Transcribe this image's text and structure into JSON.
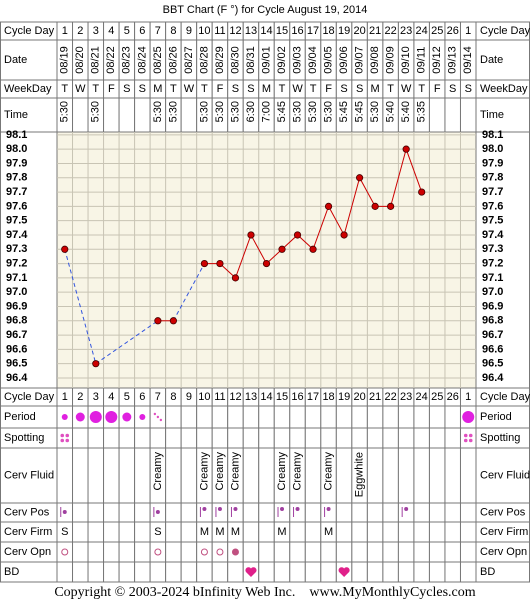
{
  "chart_data": {
    "type": "line",
    "title": "BBT Chart (F °) for Cycle August 19, 2014",
    "row_labels": {
      "cycle_day": "Cycle Day",
      "date": "Date",
      "weekday": "WeekDay",
      "time": "Time",
      "period": "Period",
      "spotting": "Spotting",
      "cerv_fluid": "Cerv Fluid",
      "cerv_pos": "Cerv Pos",
      "cerv_firm": "Cerv Firm",
      "cerv_opn": "Cerv Opn",
      "bd": "BD"
    },
    "cycle_days": [
      "1",
      "2",
      "3",
      "4",
      "5",
      "6",
      "7",
      "8",
      "9",
      "10",
      "11",
      "12",
      "13",
      "14",
      "15",
      "16",
      "17",
      "18",
      "19",
      "20",
      "21",
      "22",
      "23",
      "24",
      "25",
      "26",
      "1"
    ],
    "categories": [
      "08/19",
      "08/20",
      "08/21",
      "08/22",
      "08/23",
      "08/24",
      "08/25",
      "08/26",
      "08/27",
      "08/28",
      "08/29",
      "08/30",
      "08/31",
      "09/01",
      "09/02",
      "09/03",
      "09/04",
      "09/05",
      "09/06",
      "09/07",
      "09/08",
      "09/09",
      "09/10",
      "09/11",
      "09/12",
      "09/13",
      "09/14"
    ],
    "weekdays": [
      "T",
      "W",
      "T",
      "F",
      "S",
      "S",
      "M",
      "T",
      "W",
      "T",
      "F",
      "S",
      "S",
      "M",
      "T",
      "W",
      "T",
      "F",
      "S",
      "S",
      "M",
      "T",
      "W",
      "T",
      "F",
      "S",
      "S"
    ],
    "times": [
      "5:30",
      null,
      "5:30",
      null,
      null,
      null,
      "5:30",
      "5:30",
      null,
      "5:30",
      "5:30",
      "5:30",
      "6:30",
      "7:00",
      "5:45",
      "5:30",
      "5:30",
      "5:30",
      "5:45",
      "5:45",
      "5:30",
      "5:40",
      "5:40",
      "5:35",
      null,
      null,
      null
    ],
    "series": [
      {
        "color": "#cc0000",
        "values": [
          97.3,
          null,
          96.5,
          null,
          null,
          null,
          96.8,
          96.8,
          null,
          97.2,
          97.2,
          97.1,
          97.4,
          97.2,
          97.3,
          97.4,
          97.3,
          97.6,
          97.4,
          97.8,
          97.6,
          97.6,
          98.0,
          97.7,
          null,
          null,
          null
        ]
      }
    ],
    "gap_color": "#3355dd",
    "ylim": [
      96.33,
      98.12
    ],
    "yticks": [
      96.4,
      96.5,
      96.6,
      96.7,
      96.8,
      96.9,
      {
        "value": 97,
        "label": "97.0"
      },
      97.1,
      97.2,
      97.3,
      97.4,
      97.5,
      97.6,
      97.7,
      97.8,
      97.9,
      {
        "value": 98,
        "label": "98.0"
      },
      98.1
    ],
    "grid": true,
    "period": [
      "light",
      "medium",
      "heavy",
      "heavy",
      "medium",
      "light",
      "spotting",
      null,
      null,
      null,
      null,
      null,
      null,
      null,
      null,
      null,
      null,
      null,
      null,
      null,
      null,
      null,
      null,
      null,
      null,
      null,
      "heavy"
    ],
    "spotting": [
      true,
      false,
      false,
      false,
      false,
      false,
      false,
      false,
      false,
      false,
      false,
      false,
      false,
      false,
      false,
      false,
      false,
      false,
      false,
      false,
      false,
      false,
      false,
      false,
      false,
      false,
      true
    ],
    "cerv_fluid": [
      null,
      null,
      null,
      null,
      null,
      null,
      "Creamy",
      null,
      null,
      "Creamy",
      "Creamy",
      "Creamy",
      null,
      null,
      "Creamy",
      "Creamy",
      null,
      "Creamy",
      null,
      "Eggwhite",
      null,
      null,
      null,
      null,
      null,
      null,
      null
    ],
    "cerv_pos": [
      "low",
      null,
      null,
      null,
      null,
      null,
      "low",
      null,
      null,
      "high",
      "high",
      "high",
      null,
      null,
      "high",
      "high",
      null,
      "high",
      null,
      null,
      null,
      null,
      "high",
      null,
      null,
      null,
      null
    ],
    "cerv_firm": [
      "S",
      null,
      null,
      null,
      null,
      null,
      "S",
      null,
      null,
      "M",
      "M",
      "M",
      null,
      null,
      "M",
      null,
      null,
      "M",
      null,
      null,
      null,
      null,
      null,
      null,
      null,
      null,
      null
    ],
    "cerv_opn": [
      "open",
      null,
      null,
      null,
      null,
      null,
      "open",
      null,
      null,
      "open",
      "open",
      "closed",
      null,
      null,
      null,
      null,
      null,
      null,
      null,
      null,
      null,
      null,
      null,
      null,
      null,
      null,
      null
    ],
    "bd": [
      false,
      false,
      false,
      false,
      false,
      false,
      false,
      false,
      false,
      false,
      false,
      false,
      true,
      false,
      false,
      false,
      false,
      false,
      true,
      false,
      false,
      false,
      false,
      false,
      false,
      false,
      false
    ],
    "footer": "Copyright © 2003-2024 bInfinity Web Inc.    www.MyMonthlyCycles.com"
  }
}
